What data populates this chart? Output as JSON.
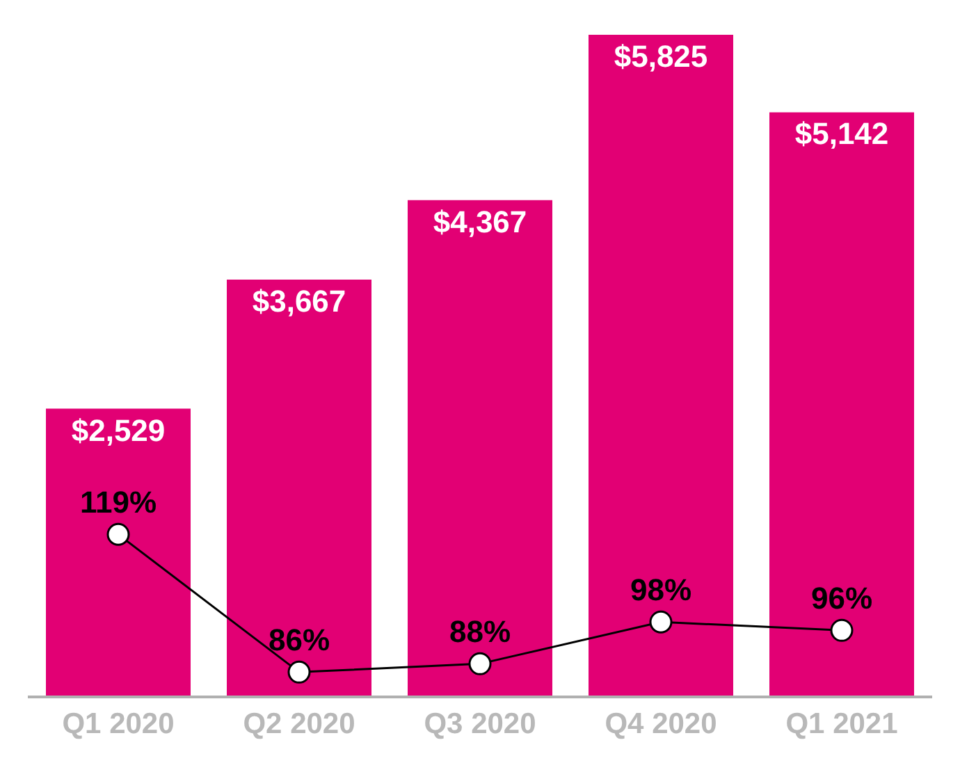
{
  "chart_data": {
    "type": "bar",
    "categories": [
      "Q1 2020",
      "Q2 2020",
      "Q3 2020",
      "Q4 2020",
      "Q1 2021"
    ],
    "series": [
      {
        "color": "#e20074",
        "values": [
          2529,
          3667,
          4367,
          5825,
          5142
        ],
        "value_labels": [
          "$2,529",
          "$3,667",
          "$4,367",
          "$5,825",
          "$5,142"
        ]
      },
      {
        "type": "line",
        "axis": "y2",
        "color": "#000000",
        "marker": "circle",
        "values": [
          119,
          86,
          88,
          98,
          96
        ],
        "value_labels": [
          "119%",
          "86%",
          "88%",
          "98%",
          "96%"
        ]
      }
    ],
    "tick_labels": "x"
  }
}
